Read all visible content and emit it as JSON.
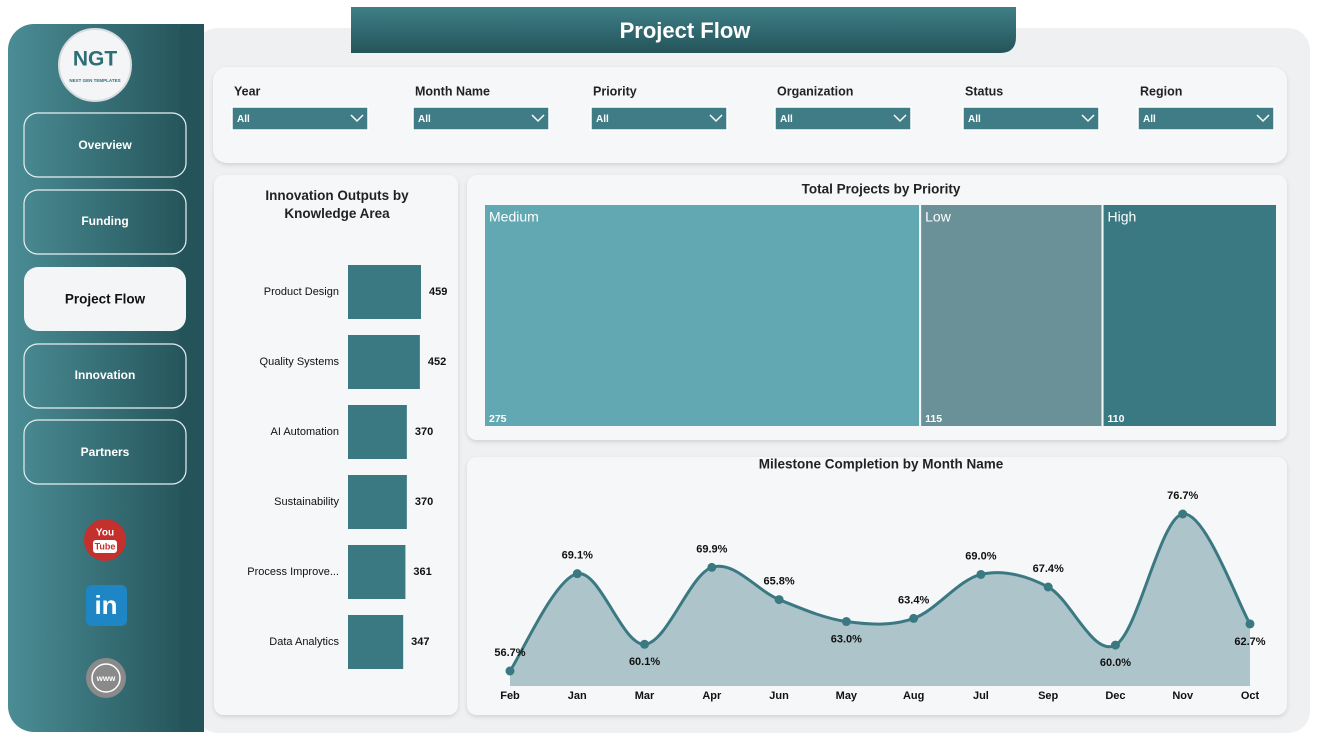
{
  "header": {
    "title": "Project Flow"
  },
  "logo": {
    "text": "NGT",
    "subtext": "NEXT GEN TEMPLATES"
  },
  "nav": [
    "Overview",
    "Funding",
    "Project Flow",
    "Innovation",
    "Partners"
  ],
  "social": {
    "youtube": [
      "You",
      "Tube"
    ],
    "linkedin": "in",
    "web": "www"
  },
  "filters": [
    {
      "label": "Year",
      "value": "All"
    },
    {
      "label": "Month Name",
      "value": "All"
    },
    {
      "label": "Priority",
      "value": "All"
    },
    {
      "label": "Organization",
      "value": "All"
    },
    {
      "label": "Status",
      "value": "All"
    },
    {
      "label": "Region",
      "value": "All"
    }
  ],
  "chart_data": [
    {
      "type": "bar",
      "orientation": "horizontal",
      "title": "Innovation Outputs by Knowledge Area",
      "categories": [
        "Product Design",
        "Quality Systems",
        "AI Automation",
        "Sustainability",
        "Process Improve...",
        "Data Analytics"
      ],
      "values": [
        459,
        452,
        370,
        370,
        361,
        347
      ],
      "color": "#3b7982"
    },
    {
      "type": "treemap",
      "title": "Total Projects by Priority",
      "categories": [
        "Medium",
        "Low",
        "High"
      ],
      "values": [
        275,
        115,
        110
      ],
      "colors": [
        "#62a8b3",
        "#6a9197",
        "#3b7982"
      ]
    },
    {
      "type": "area",
      "title": "Milestone Completion by Month Name",
      "categories": [
        "Feb",
        "Jan",
        "Mar",
        "Apr",
        "Jun",
        "May",
        "Aug",
        "Jul",
        "Sep",
        "Dec",
        "Nov",
        "Oct"
      ],
      "values": [
        56.7,
        69.1,
        60.1,
        69.9,
        65.8,
        63.0,
        63.4,
        69.0,
        67.4,
        60.0,
        76.7,
        62.7
      ],
      "value_labels": [
        "56.7%",
        "69.1%",
        "60.1%",
        "69.9%",
        "65.8%",
        "63.0%",
        "63.4%",
        "69.0%",
        "67.4%",
        "60.0%",
        "76.7%",
        "62.7%"
      ],
      "color": "#3b7982",
      "fill": "#adc5ca"
    }
  ]
}
